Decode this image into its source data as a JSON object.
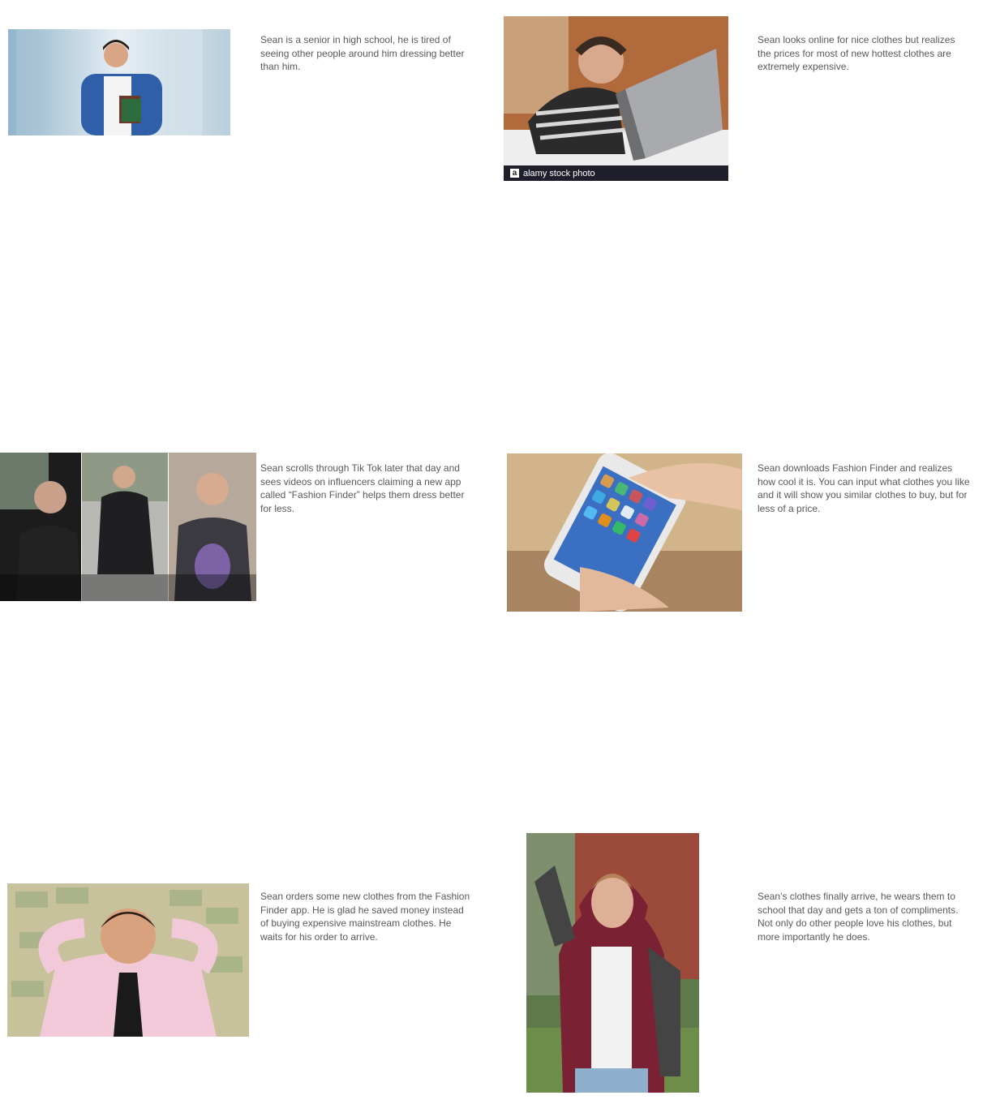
{
  "panels": [
    {
      "caption": "Sean is a senior in high school, he is tired of seeing other people around him dressing better than him."
    },
    {
      "caption": "Sean looks online for nice clothes but realizes the prices for most of new hottest clothes are extremely expensive.",
      "watermark_text": "alamy stock photo",
      "watermark_logo": "a"
    },
    {
      "caption": "Sean scrolls through Tik Tok later that day and sees videos on influencers claiming a new app called “Fashion Finder” helps them dress better for less."
    },
    {
      "caption": "Sean downloads Fashion Finder and realizes how cool it is. You can input what clothes you like and it will show you similar clothes to buy, but for less of a price."
    },
    {
      "caption": "Sean orders some new clothes from the Fashion Finder app. He is glad he saved money instead of buying expensive mainstream clothes. He waits for his order to arrive."
    },
    {
      "caption": "Sean’s clothes finally arrive, he wears them to school that day and gets a ton of compliments. Not only do other people love his clothes, but more importantly he does."
    }
  ],
  "colors": {
    "text": "#595959",
    "background": "#ffffff"
  }
}
